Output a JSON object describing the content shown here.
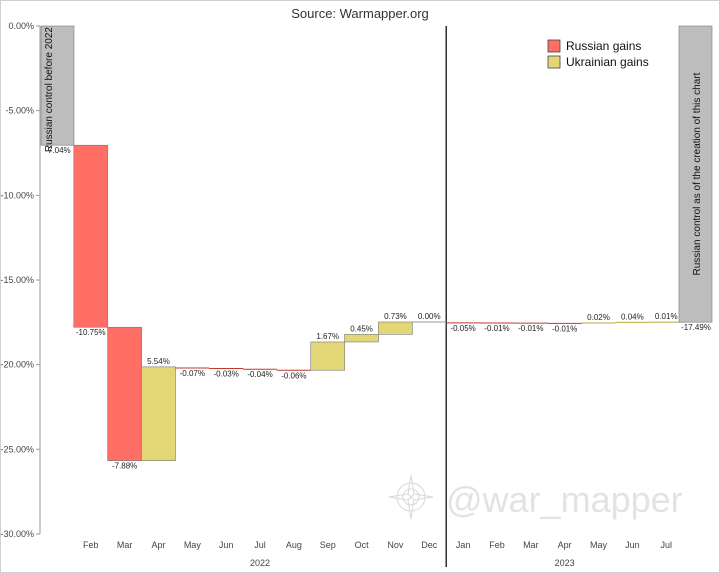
{
  "chart_data": {
    "type": "bar",
    "subtype": "waterfall",
    "title": "Source: Warmapper.org",
    "ylim": [
      -30,
      0
    ],
    "y_ticks": [
      0,
      -5,
      -10,
      -15,
      -20,
      -25,
      -30
    ],
    "y_tick_labels": [
      "0.00%",
      "-5.00%",
      "-10.00%",
      "-15.00%",
      "-20.00%",
      "-25.00%",
      "-30.00%"
    ],
    "grid": false,
    "legend_position": "top-right",
    "colors": {
      "russian": "#ff6f66",
      "ukrainian": "#e2d677",
      "baseline": "#bdbdbd",
      "outline": "#7a7a7a"
    },
    "series": [
      {
        "name": "Russian gains",
        "color": "#ff6f66"
      },
      {
        "name": "Ukrainian gains",
        "color": "#e2d677"
      }
    ],
    "start": {
      "value": -7.04,
      "label": "-7.04%",
      "text": "Russian control before 2022"
    },
    "end": {
      "value": -17.49,
      "label": "-17.49%",
      "text": "Russian control as of the creation of this chart"
    },
    "categories": [
      "Feb",
      "Mar",
      "Apr",
      "May",
      "Jun",
      "Jul",
      "Aug",
      "Sep",
      "Oct",
      "Nov",
      "Dec",
      "Jan",
      "Feb",
      "Mar",
      "Apr",
      "May",
      "Jun",
      "Jul"
    ],
    "values": [
      -10.75,
      -7.88,
      5.54,
      -0.07,
      -0.03,
      -0.04,
      -0.06,
      1.67,
      0.45,
      0.73,
      0.0,
      -0.05,
      -0.01,
      -0.01,
      -0.01,
      0.02,
      0.04,
      0.01
    ],
    "value_labels": [
      "-10.75%",
      "-7.88%",
      "5.54%",
      "-0.07%",
      "-0.03%",
      "-0.04%",
      "-0.06%",
      "1.67%",
      "0.45%",
      "0.73%",
      "0.00%",
      "-0.05%",
      "-0.01%",
      "-0.01%",
      "-0.01%",
      "0.02%",
      "0.04%",
      "0.01%"
    ],
    "years": [
      {
        "label": "2022",
        "from": 0,
        "to": 10
      },
      {
        "label": "2023",
        "from": 11,
        "to": 17
      }
    ],
    "watermark": "@war_mapper"
  }
}
